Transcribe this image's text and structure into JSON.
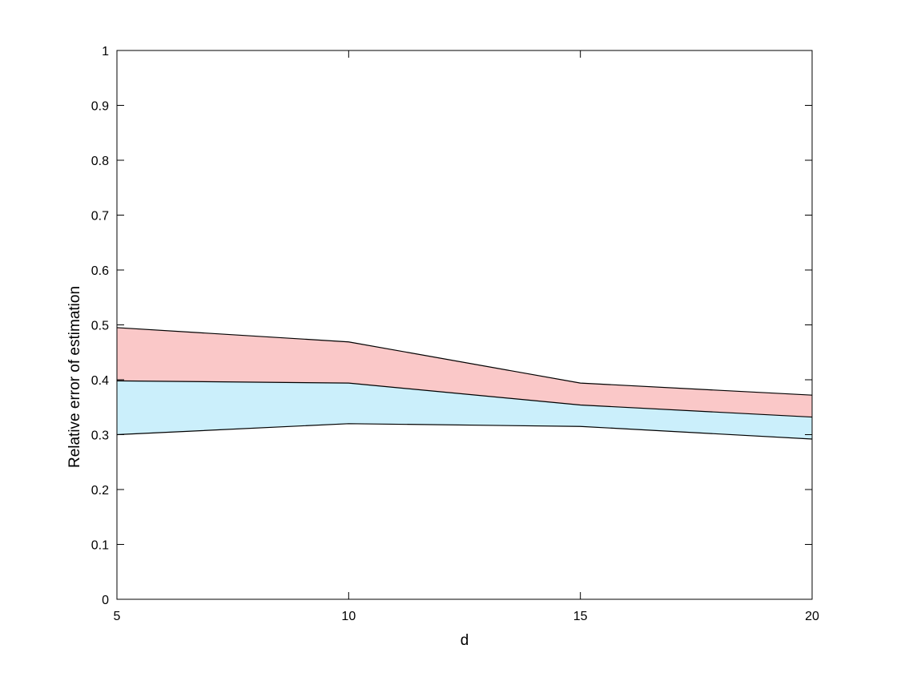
{
  "chart_data": {
    "type": "area",
    "title": "",
    "xlabel": "d",
    "ylabel": "Relative error of estimation",
    "x": [
      5,
      10,
      15,
      20
    ],
    "xlim": [
      5,
      20
    ],
    "ylim": [
      0,
      1
    ],
    "xticks": [
      5,
      10,
      15,
      20
    ],
    "xtick_labels": [
      "5",
      "10",
      "15",
      "20"
    ],
    "yticks": [
      0,
      0.1,
      0.2,
      0.3,
      0.4,
      0.5,
      0.6,
      0.7,
      0.8,
      0.9,
      1
    ],
    "ytick_labels": [
      "0",
      "0.1",
      "0.2",
      "0.3",
      "0.4",
      "0.5",
      "0.6",
      "0.7",
      "0.8",
      "0.9",
      "1"
    ],
    "grid": false,
    "bands": [
      {
        "lower": [
          0.3,
          0.32,
          0.315,
          0.292
        ],
        "upper": [
          0.398,
          0.394,
          0.354,
          0.332
        ],
        "color": "#cbeffb"
      },
      {
        "lower": [
          0.398,
          0.394,
          0.354,
          0.332
        ],
        "upper": [
          0.495,
          0.469,
          0.394,
          0.372
        ],
        "color": "#fac8c8"
      }
    ],
    "line_color": "#000000"
  }
}
